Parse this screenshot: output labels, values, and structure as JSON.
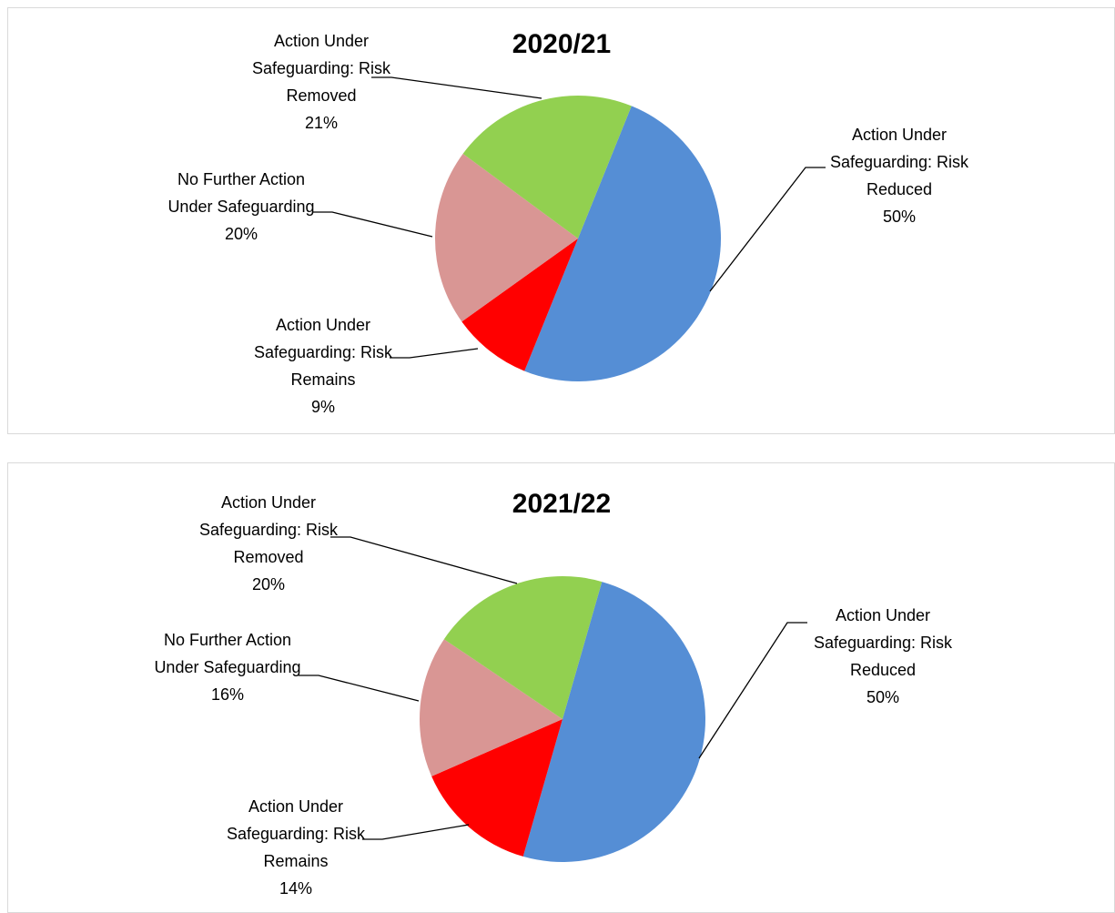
{
  "chart_data": [
    {
      "type": "pie",
      "title": "2020/21",
      "categories": [
        "Action Under Safeguarding: Risk Reduced",
        "Action Under Safeguarding: Risk Remains",
        "No Further Action Under Safeguarding",
        "Action Under Safeguarding: Risk Removed"
      ],
      "values": [
        50,
        9,
        20,
        21
      ],
      "value_labels": [
        "50%",
        "9%",
        "20%",
        "21%"
      ],
      "colors": [
        "#558ed5",
        "#ff0000",
        "#d99694",
        "#92d050"
      ]
    },
    {
      "type": "pie",
      "title": "2021/22",
      "categories": [
        "Action Under Safeguarding: Risk Reduced",
        "Action Under Safeguarding: Risk Remains",
        "No Further Action Under Safeguarding",
        "Action Under Safeguarding: Risk Removed"
      ],
      "values": [
        50,
        14,
        16,
        20
      ],
      "value_labels": [
        "50%",
        "14%",
        "16%",
        "20%"
      ],
      "colors": [
        "#558ed5",
        "#ff0000",
        "#d99694",
        "#92d050"
      ]
    }
  ]
}
